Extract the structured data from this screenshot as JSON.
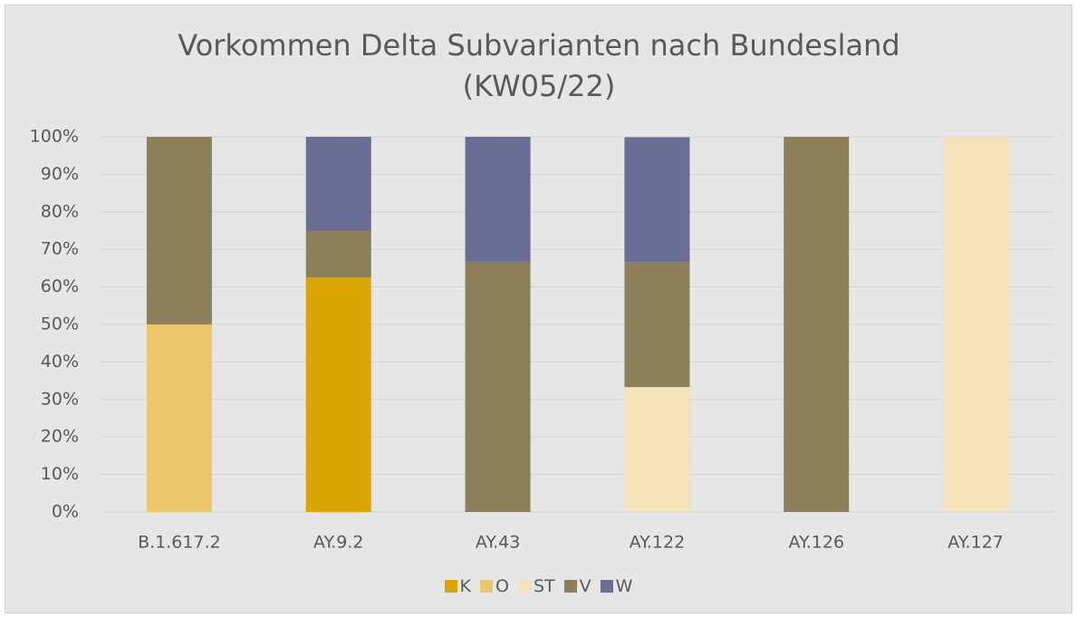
{
  "chart_data": {
    "type": "stacked_bar",
    "title": "Vorkommen Delta Subvarianten nach Bundesland (KW05/22)",
    "categories": [
      "B.1.617.2",
      "AY.9.2",
      "AY.43",
      "AY.122",
      "AY.126",
      "AY.127"
    ],
    "series": [
      {
        "name": "K",
        "color": "#d9a600",
        "values": [
          0,
          62.5,
          0,
          0,
          0,
          0
        ]
      },
      {
        "name": "O",
        "color": "#ecc66a",
        "values": [
          50,
          0,
          0,
          0,
          0,
          0
        ]
      },
      {
        "name": "ST",
        "color": "#f2e3b8",
        "values": [
          0,
          0,
          0,
          33.3,
          0,
          100
        ]
      },
      {
        "name": "V",
        "color": "#8c7f5a",
        "values": [
          50,
          12.5,
          66.7,
          33.3,
          100,
          0
        ]
      },
      {
        "name": "W",
        "color": "#6b6e94",
        "values": [
          0,
          25,
          33.3,
          33.3,
          0,
          0
        ]
      }
    ],
    "ylim": [
      0,
      100
    ],
    "yticks": [
      {
        "value": 0,
        "label": "0%"
      },
      {
        "value": 10,
        "label": "10%"
      },
      {
        "value": 20,
        "label": "20%"
      },
      {
        "value": 30,
        "label": "30%"
      },
      {
        "value": 40,
        "label": "40%"
      },
      {
        "value": 50,
        "label": "50%"
      },
      {
        "value": 60,
        "label": "60%"
      },
      {
        "value": 70,
        "label": "70%"
      },
      {
        "value": 80,
        "label": "80%"
      },
      {
        "value": 90,
        "label": "90%"
      },
      {
        "value": 100,
        "label": "100%"
      }
    ],
    "grid": true,
    "legend": "bottom"
  }
}
